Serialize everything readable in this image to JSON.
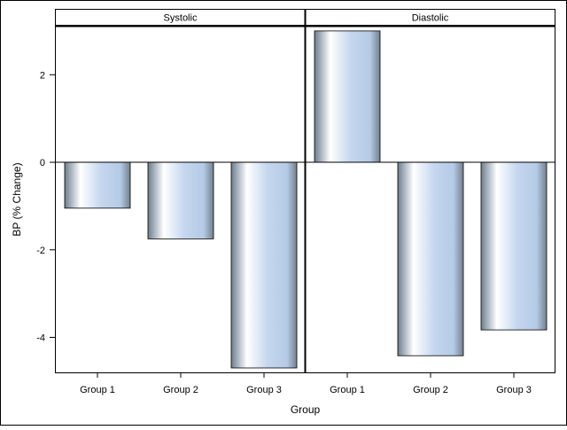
{
  "chart_data": {
    "type": "bar",
    "xlabel": "Group",
    "ylabel": "BP (% Change)",
    "categories": [
      "Group 1",
      "Group 2",
      "Group 3"
    ],
    "ylim": [
      -4.8,
      3.1
    ],
    "yticks": [
      -4,
      -2,
      0,
      2
    ],
    "grid": false,
    "legend": "none",
    "panels": [
      {
        "title": "Systolic",
        "values": [
          -1.05,
          -1.75,
          -4.7
        ]
      },
      {
        "title": "Diastolic",
        "values": [
          3.0,
          -4.42,
          -3.83
        ]
      }
    ],
    "colors": {
      "bar_light": "#ffffff",
      "bar_mid": "#b7cde9",
      "bar_dark": "#6f7c8a",
      "frame": "#000000"
    }
  }
}
